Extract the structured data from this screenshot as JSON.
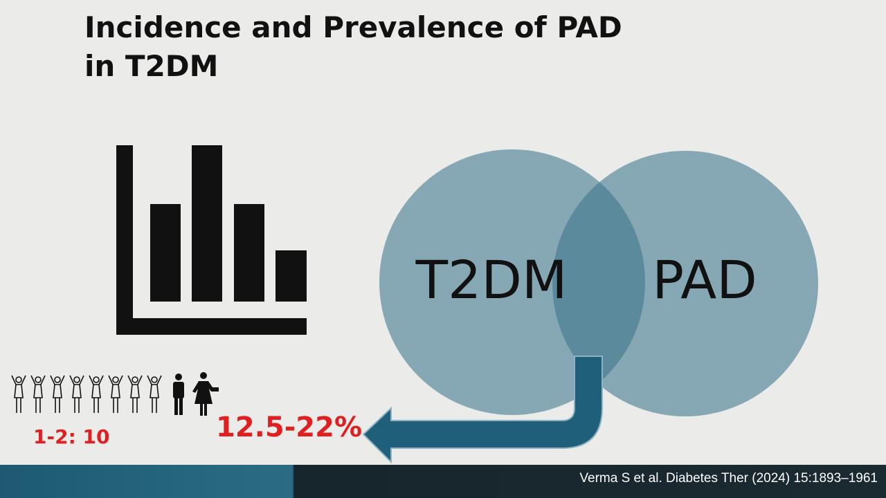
{
  "title": "Incidence and Prevalence of PAD in T2DM",
  "venn": {
    "left": "T2DM",
    "right": "PAD"
  },
  "stats": {
    "ratio": "1-2: 10",
    "prevalence": "12.5-22%"
  },
  "footer": {
    "citation": "Verma S et al. Diabetes Ther (2024) 15:1893–1961"
  }
}
